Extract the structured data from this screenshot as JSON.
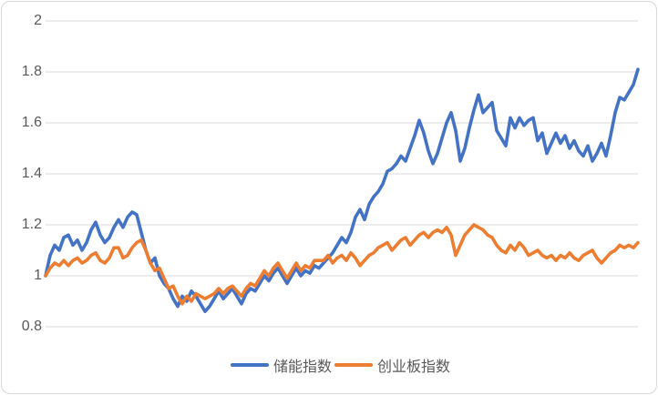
{
  "chart_data": {
    "type": "line",
    "title": "",
    "xlabel": "",
    "ylabel": "",
    "yticks": [
      "2",
      "1.8",
      "1.6",
      "1.4",
      "1.2",
      "1",
      "0.8"
    ],
    "ylim": [
      0.8,
      2
    ],
    "grid": true,
    "legend_position": "bottom-center",
    "colors": {
      "grid": "#d9d9d9",
      "tick_text": "#595959",
      "frame_border": "#d9d9d9",
      "background": "#ffffff"
    },
    "series": [
      {
        "name": "储能指数",
        "color": "#4472c4",
        "values": [
          1.0,
          1.08,
          1.12,
          1.1,
          1.15,
          1.16,
          1.12,
          1.14,
          1.1,
          1.13,
          1.18,
          1.21,
          1.16,
          1.13,
          1.15,
          1.19,
          1.22,
          1.19,
          1.23,
          1.25,
          1.24,
          1.17,
          1.1,
          1.05,
          1.07,
          1.0,
          0.97,
          0.95,
          0.91,
          0.88,
          0.92,
          0.9,
          0.94,
          0.92,
          0.89,
          0.86,
          0.88,
          0.91,
          0.94,
          0.91,
          0.93,
          0.95,
          0.92,
          0.89,
          0.93,
          0.95,
          0.94,
          0.97,
          1.0,
          0.98,
          1.01,
          1.03,
          1.0,
          0.97,
          1.0,
          1.03,
          1.0,
          1.02,
          1.01,
          1.04,
          1.03,
          1.05,
          1.07,
          1.09,
          1.12,
          1.15,
          1.13,
          1.17,
          1.23,
          1.26,
          1.22,
          1.28,
          1.31,
          1.33,
          1.36,
          1.41,
          1.42,
          1.44,
          1.47,
          1.45,
          1.5,
          1.55,
          1.61,
          1.56,
          1.49,
          1.44,
          1.48,
          1.54,
          1.6,
          1.64,
          1.57,
          1.45,
          1.5,
          1.58,
          1.65,
          1.71,
          1.64,
          1.66,
          1.68,
          1.57,
          1.54,
          1.51,
          1.62,
          1.58,
          1.62,
          1.59,
          1.61,
          1.62,
          1.53,
          1.56,
          1.48,
          1.52,
          1.56,
          1.52,
          1.55,
          1.5,
          1.53,
          1.49,
          1.47,
          1.51,
          1.45,
          1.48,
          1.52,
          1.47,
          1.55,
          1.64,
          1.7,
          1.69,
          1.72,
          1.75,
          1.81
        ]
      },
      {
        "name": "创业板指数",
        "color": "#ed7d31",
        "values": [
          1.0,
          1.03,
          1.05,
          1.04,
          1.06,
          1.04,
          1.06,
          1.07,
          1.05,
          1.06,
          1.08,
          1.09,
          1.06,
          1.05,
          1.07,
          1.11,
          1.11,
          1.07,
          1.08,
          1.11,
          1.13,
          1.14,
          1.1,
          1.05,
          1.02,
          1.03,
          0.99,
          0.95,
          0.96,
          0.92,
          0.89,
          0.92,
          0.9,
          0.93,
          0.92,
          0.91,
          0.92,
          0.93,
          0.95,
          0.93,
          0.95,
          0.96,
          0.94,
          0.92,
          0.95,
          0.97,
          0.96,
          0.99,
          1.02,
          1.0,
          1.03,
          1.05,
          1.02,
          0.99,
          1.02,
          1.05,
          1.02,
          1.04,
          1.03,
          1.06,
          1.06,
          1.06,
          1.08,
          1.05,
          1.07,
          1.08,
          1.06,
          1.09,
          1.07,
          1.04,
          1.06,
          1.08,
          1.09,
          1.11,
          1.12,
          1.13,
          1.1,
          1.12,
          1.14,
          1.15,
          1.12,
          1.14,
          1.16,
          1.17,
          1.15,
          1.17,
          1.18,
          1.17,
          1.19,
          1.16,
          1.08,
          1.12,
          1.16,
          1.18,
          1.2,
          1.19,
          1.18,
          1.16,
          1.15,
          1.12,
          1.1,
          1.09,
          1.12,
          1.1,
          1.13,
          1.11,
          1.08,
          1.09,
          1.1,
          1.08,
          1.07,
          1.08,
          1.06,
          1.08,
          1.07,
          1.09,
          1.07,
          1.06,
          1.08,
          1.09,
          1.1,
          1.07,
          1.05,
          1.07,
          1.09,
          1.1,
          1.12,
          1.11,
          1.12,
          1.11,
          1.13
        ]
      }
    ]
  }
}
